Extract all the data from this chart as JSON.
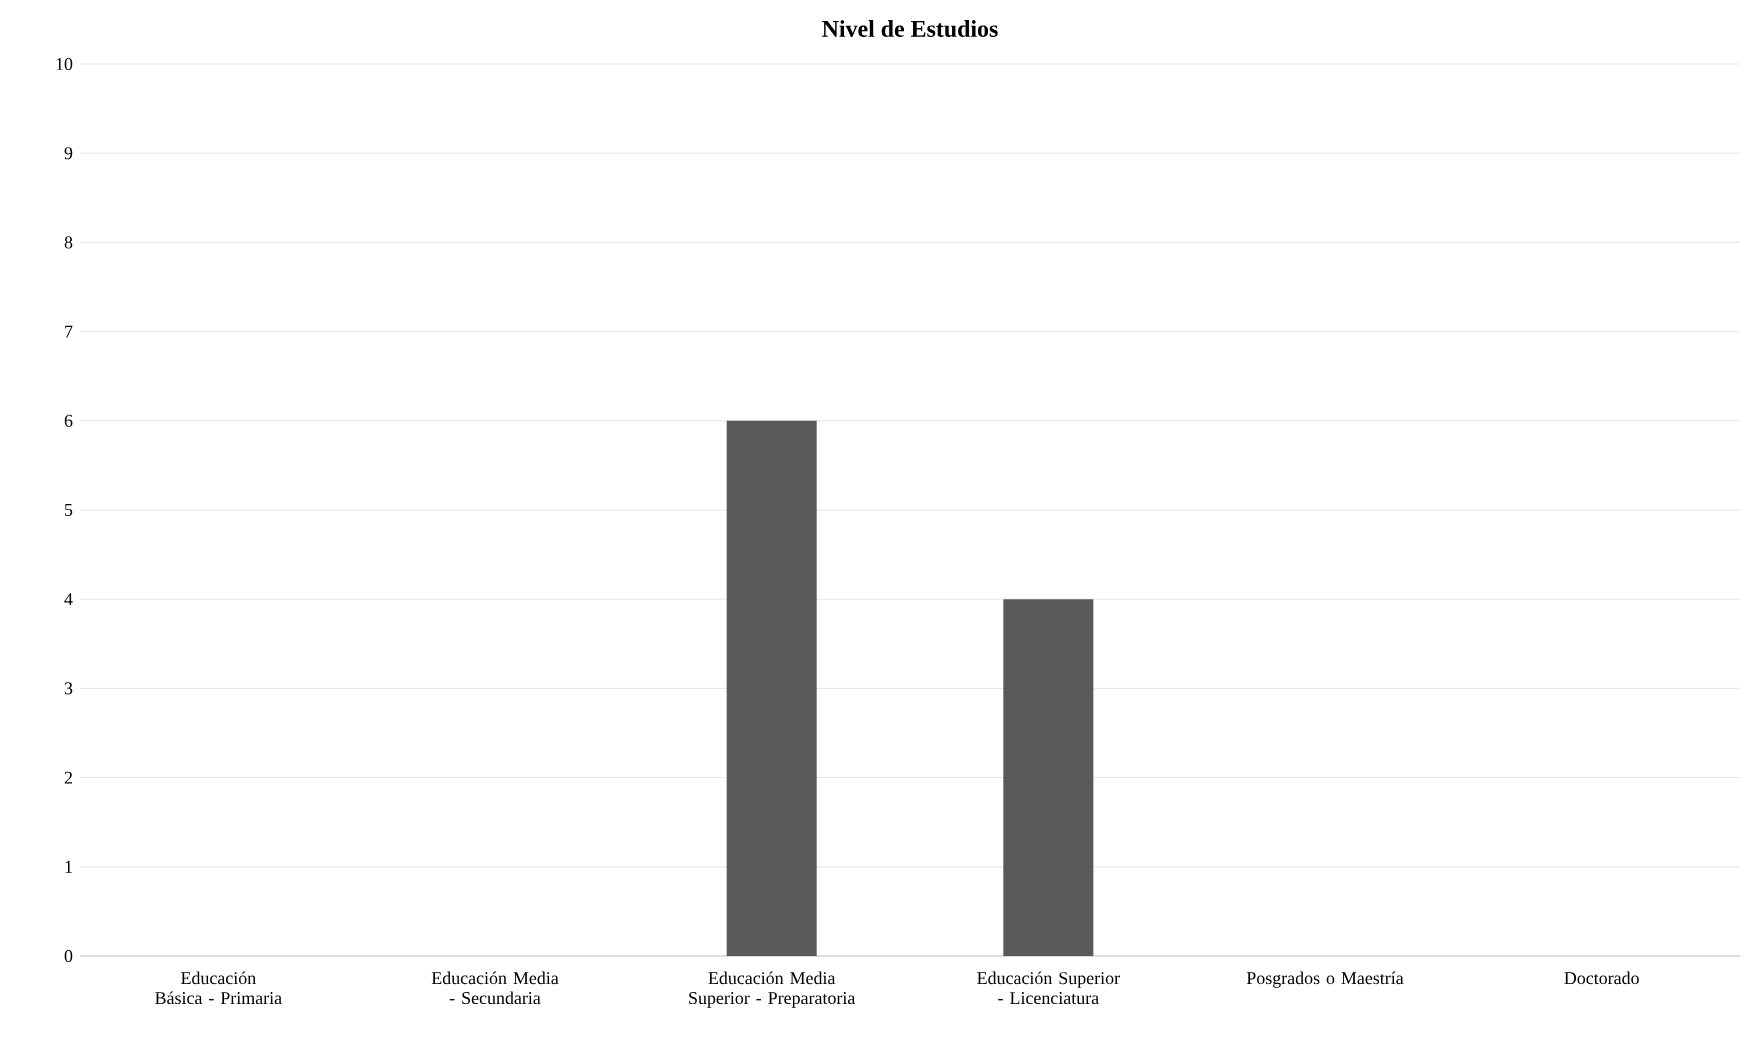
{
  "chart_data": {
    "type": "bar",
    "title": "Nivel de Estudios",
    "categories": [
      "Educación Básica - Primaria",
      "Educación Media - Secundaria",
      "Educación Media Superior - Preparatoria",
      "Educación Superior - Licenciatura",
      "Posgrados o Maestría",
      "Doctorado"
    ],
    "values": [
      0,
      0,
      6,
      4,
      0,
      0
    ],
    "color": "#595959",
    "ylim": [
      0,
      10
    ],
    "yticks": [
      0,
      1,
      2,
      3,
      4,
      5,
      6,
      7,
      8,
      9,
      10
    ],
    "grid": "y"
  }
}
